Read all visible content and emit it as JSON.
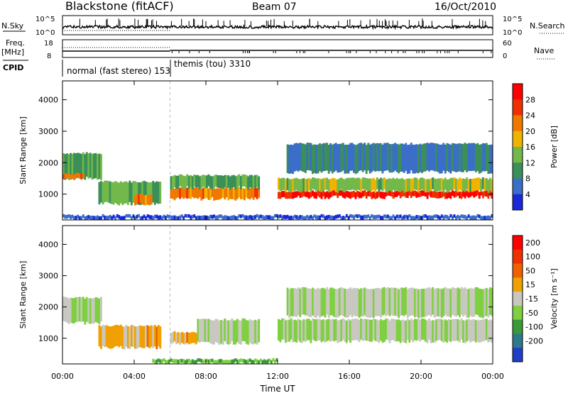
{
  "header": {
    "title": "Blackstone (fitACF)",
    "beam": "Beam 07",
    "date": "16/Oct/2010"
  },
  "top_panels": {
    "nsky_label": "N.Sky",
    "nsky_ticks": [
      "10^5",
      "10^0"
    ],
    "nsearch_label": "N.Search",
    "nsearch_ticks": [
      "10^5",
      "10^0"
    ],
    "freq_label": "Freq.",
    "freq_unit": "[MHz]",
    "freq_ticks": [
      "18",
      "8"
    ],
    "nave_label": "Nave",
    "nave_ticks": [
      "60",
      "0"
    ],
    "cpid_label": "CPID",
    "cpid_segments": [
      {
        "name": "normal (fast stereo) 153",
        "start_hour": 0,
        "end_hour": 6
      },
      {
        "name": "themis (tou) 3310",
        "start_hour": 6,
        "end_hour": 24
      }
    ]
  },
  "colors": {
    "power_scale": [
      "#1a28d8",
      "#3a6ec8",
      "#3b8f58",
      "#72b84a",
      "#f0b400",
      "#f07800",
      "#f03000",
      "#ff0000"
    ],
    "velocity_scale": [
      "#1f3fc8",
      "#2f7a8a",
      "#3a9a3a",
      "#7fd040",
      "#c8c8c0",
      "#f0a000",
      "#f06000",
      "#f03000",
      "#ff0000"
    ]
  },
  "chart_data": [
    {
      "type": "heatmap",
      "name": "power",
      "ylabel": "Slant Range [km]",
      "xlabel": "Time UT",
      "x_ticks": [
        "00:00",
        "04:00",
        "08:00",
        "12:00",
        "16:00",
        "20:00",
        "00:00"
      ],
      "x_range_hours": [
        0,
        24
      ],
      "y_ticks": [
        1000,
        2000,
        3000,
        4000
      ],
      "ylim": [
        180,
        4600
      ],
      "colorbar_label": "Power [dB]",
      "colorbar_ticks": [
        "4",
        "8",
        "12",
        "16",
        "20",
        "24",
        "28"
      ],
      "colorbar_range": [
        0,
        32
      ],
      "regions": [
        {
          "t0": 0.0,
          "t1": 2.2,
          "r_lo": 1500,
          "r_hi": 2300,
          "level": 0.35
        },
        {
          "t0": 0.0,
          "t1": 1.2,
          "r_lo": 1500,
          "r_hi": 1650,
          "level": 0.75
        },
        {
          "t0": 2.0,
          "t1": 5.5,
          "r_lo": 700,
          "r_hi": 1400,
          "level": 0.4
        },
        {
          "t0": 4.0,
          "t1": 5.0,
          "r_lo": 700,
          "r_hi": 1000,
          "level": 0.7
        },
        {
          "t0": 6.0,
          "t1": 11.0,
          "r_lo": 850,
          "r_hi": 1200,
          "level": 0.7
        },
        {
          "t0": 6.0,
          "t1": 11.0,
          "r_lo": 1200,
          "r_hi": 1600,
          "level": 0.35
        },
        {
          "t0": 12.0,
          "t1": 24.0,
          "r_lo": 900,
          "r_hi": 1100,
          "level": 0.95
        },
        {
          "t0": 12.0,
          "t1": 24.0,
          "r_lo": 1100,
          "r_hi": 1500,
          "level": 0.45
        },
        {
          "t0": 12.5,
          "t1": 24.0,
          "r_lo": 1700,
          "r_hi": 2600,
          "level": 0.2
        },
        {
          "t0": 0.0,
          "t1": 24.0,
          "r_lo": 200,
          "r_hi": 330,
          "level": 0.1
        }
      ]
    },
    {
      "type": "heatmap",
      "name": "velocity",
      "ylabel": "Slant Range [km]",
      "xlabel": "Time UT",
      "x_ticks": [
        "00:00",
        "04:00",
        "08:00",
        "12:00",
        "16:00",
        "20:00",
        "00:00"
      ],
      "x_range_hours": [
        0,
        24
      ],
      "y_ticks": [
        1000,
        2000,
        3000,
        4000
      ],
      "ylim": [
        180,
        4600
      ],
      "colorbar_label": "Velocity [m s⁻¹]",
      "colorbar_ticks": [
        "200",
        "100",
        "50",
        "15",
        "-15",
        "-50",
        "-100",
        "-200"
      ],
      "regions": [
        {
          "t0": 0.0,
          "t1": 2.2,
          "r_lo": 1500,
          "r_hi": 2300,
          "level": 0.45
        },
        {
          "t0": 2.0,
          "t1": 5.5,
          "r_lo": 700,
          "r_hi": 1400,
          "level": 0.6
        },
        {
          "t0": 6.0,
          "t1": 7.5,
          "r_lo": 850,
          "r_hi": 1200,
          "level": 0.62
        },
        {
          "t0": 7.5,
          "t1": 11.0,
          "r_lo": 850,
          "r_hi": 1600,
          "level": 0.45
        },
        {
          "t0": 12.0,
          "t1": 24.0,
          "r_lo": 900,
          "r_hi": 1600,
          "level": 0.45
        },
        {
          "t0": 12.5,
          "t1": 24.0,
          "r_lo": 1700,
          "r_hi": 2600,
          "level": 0.45
        },
        {
          "t0": 5.0,
          "t1": 12.0,
          "r_lo": 200,
          "r_hi": 330,
          "level": 0.3
        }
      ]
    }
  ]
}
